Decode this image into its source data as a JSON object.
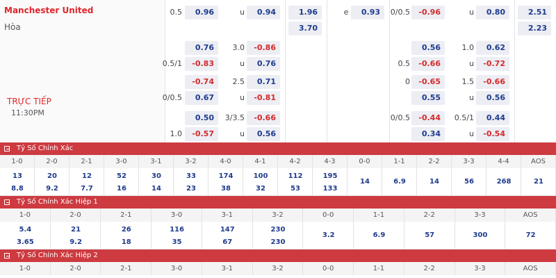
{
  "match": {
    "home": "Manchester United",
    "draw": "Hòa",
    "status": "TRỰC TIẾP",
    "time": "11:30PM"
  },
  "odds_rows": [
    {
      "hdp": "0.5",
      "h": "0.96",
      "ou": "u",
      "a": "0.94",
      "x": "1.96",
      "e": "e",
      "eo": "0.93",
      "hdp2": "0/0.5",
      "h2": "-0.96",
      "ou2": "u",
      "a2": "0.80",
      "x2": "2.51"
    },
    {
      "x": "3.70",
      "x2": "2.23"
    },
    {
      "h": "0.76",
      "ou": "3.0",
      "a": "-0.86",
      "h2": "0.56",
      "ou2": "1.0",
      "a2": "0.62"
    },
    {
      "hdp": "0.5/1",
      "h": "-0.83",
      "ou": "u",
      "a": "0.76",
      "hdp2": "0.5",
      "h2": "-0.66",
      "ou2": "u",
      "a2": "-0.72"
    },
    {
      "h": "-0.74",
      "ou": "2.5",
      "a": "0.71",
      "hdp2": "0",
      "h2": "-0.65",
      "ou2": "1.5",
      "a2": "-0.66"
    },
    {
      "hdp": "0/0.5",
      "h": "0.67",
      "ou": "u",
      "a": "-0.81",
      "h2": "0.55",
      "ou2": "u",
      "a2": "0.56"
    },
    {
      "h": "0.50",
      "ou": "3/3.5",
      "a": "-0.66",
      "hdp2": "0/0.5",
      "h2": "-0.44",
      "ou2": "0.5/1",
      "a2": "0.44"
    },
    {
      "hdp": "1.0",
      "h": "-0.57",
      "ou": "u",
      "a": "0.56",
      "h2": "0.34",
      "ou2": "u",
      "a2": "-0.54"
    }
  ],
  "sections": [
    {
      "title": "Tỷ Số Chính Xác",
      "columns": [
        {
          "label": "1-0",
          "odds": [
            "13",
            "8.8"
          ]
        },
        {
          "label": "2-0",
          "odds": [
            "20",
            "9.2"
          ]
        },
        {
          "label": "2-1",
          "odds": [
            "12",
            "7.7"
          ]
        },
        {
          "label": "3-0",
          "odds": [
            "52",
            "16"
          ]
        },
        {
          "label": "3-1",
          "odds": [
            "30",
            "14"
          ]
        },
        {
          "label": "3-2",
          "odds": [
            "33",
            "23"
          ]
        },
        {
          "label": "4-0",
          "odds": [
            "174",
            "38"
          ]
        },
        {
          "label": "4-1",
          "odds": [
            "100",
            "32"
          ]
        },
        {
          "label": "4-2",
          "odds": [
            "112",
            "53"
          ]
        },
        {
          "label": "4-3",
          "odds": [
            "195",
            "133"
          ]
        },
        {
          "label": "0-0",
          "odds": [
            "14"
          ]
        },
        {
          "label": "1-1",
          "odds": [
            "6.9"
          ]
        },
        {
          "label": "2-2",
          "odds": [
            "14"
          ]
        },
        {
          "label": "3-3",
          "odds": [
            "56"
          ]
        },
        {
          "label": "4-4",
          "odds": [
            "268"
          ]
        },
        {
          "label": "AOS",
          "odds": [
            "21"
          ]
        }
      ]
    },
    {
      "title": "Tỷ Số Chính Xác Hiệp 1",
      "columns": [
        {
          "label": "1-0",
          "odds": [
            "5.4",
            "3.65"
          ]
        },
        {
          "label": "2-0",
          "odds": [
            "21",
            "9.2"
          ]
        },
        {
          "label": "2-1",
          "odds": [
            "26",
            "18"
          ]
        },
        {
          "label": "3-0",
          "odds": [
            "116",
            "35"
          ]
        },
        {
          "label": "3-1",
          "odds": [
            "147",
            "67"
          ]
        },
        {
          "label": "3-2",
          "odds": [
            "230",
            "230"
          ]
        },
        {
          "label": "0-0",
          "odds": [
            "3.2"
          ]
        },
        {
          "label": "1-1",
          "odds": [
            "6.9"
          ]
        },
        {
          "label": "2-2",
          "odds": [
            "57"
          ]
        },
        {
          "label": "3-3",
          "odds": [
            "300"
          ]
        },
        {
          "label": "AOS",
          "odds": [
            "72"
          ]
        }
      ]
    },
    {
      "title": "Tỷ Số Chính Xác Hiệp 2",
      "columns": [
        {
          "label": "1-0"
        },
        {
          "label": "2-0"
        },
        {
          "label": "2-1"
        },
        {
          "label": "3-0"
        },
        {
          "label": "3-1"
        },
        {
          "label": "3-2"
        },
        {
          "label": "0-0"
        },
        {
          "label": "1-1"
        },
        {
          "label": "2-2"
        },
        {
          "label": "3-3"
        },
        {
          "label": "AOS"
        }
      ]
    }
  ]
}
